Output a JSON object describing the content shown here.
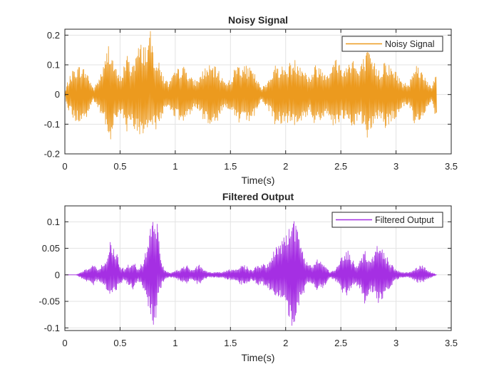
{
  "chart_data": [
    {
      "type": "line",
      "title": "Noisy Signal",
      "xlabel": "Time(s)",
      "ylabel": "",
      "xlim": [
        0,
        3.5
      ],
      "ylim": [
        -0.2,
        0.22
      ],
      "xticks": [
        0,
        0.5,
        1,
        1.5,
        2,
        2.5,
        3,
        3.5
      ],
      "xtick_labels": [
        "0",
        "0.5",
        "1",
        "1.5",
        "2",
        "2.5",
        "3",
        "3.5"
      ],
      "yticks": [
        -0.2,
        -0.1,
        0,
        0.1,
        0.2
      ],
      "ytick_labels": [
        "-0.2",
        "-0.1",
        "0",
        "0.1",
        "0.2"
      ],
      "grid": true,
      "legend_position": "top-right",
      "series": [
        {
          "name": "Noisy Signal",
          "color": "#EC9A1E",
          "x_end": 3.37,
          "envelope": {
            "t": [
              0.0,
              0.02,
              0.08,
              0.14,
              0.2,
              0.26,
              0.3,
              0.36,
              0.4,
              0.42,
              0.44,
              0.46,
              0.5,
              0.52,
              0.56,
              0.6,
              0.66,
              0.7,
              0.74,
              0.78,
              0.8,
              0.82,
              0.86,
              0.9,
              0.94,
              1.0,
              1.06,
              1.1,
              1.16,
              1.2,
              1.26,
              1.32,
              1.38,
              1.44,
              1.5,
              1.56,
              1.62,
              1.68,
              1.72,
              1.78,
              1.84,
              1.9,
              1.96,
              2.0,
              2.04,
              2.08,
              2.14,
              2.18,
              2.22,
              2.26,
              2.3,
              2.36,
              2.42,
              2.46,
              2.5,
              2.54,
              2.6,
              2.66,
              2.7,
              2.74,
              2.8,
              2.86,
              2.9,
              2.94,
              3.0,
              3.06,
              3.12,
              3.16,
              3.2,
              3.26,
              3.32,
              3.36,
              3.37
            ],
            "max": [
              0.0,
              0.04,
              0.09,
              0.1,
              0.08,
              0.02,
              0.05,
              0.11,
              0.19,
              0.15,
              0.12,
              0.09,
              0.06,
              0.08,
              0.14,
              0.1,
              0.16,
              0.18,
              0.17,
              0.22,
              0.16,
              0.14,
              0.1,
              0.06,
              0.04,
              0.08,
              0.1,
              0.09,
              0.05,
              0.05,
              0.09,
              0.1,
              0.09,
              0.05,
              0.05,
              0.11,
              0.1,
              0.09,
              0.07,
              0.02,
              0.05,
              0.1,
              0.1,
              0.09,
              0.11,
              0.12,
              0.11,
              0.08,
              0.06,
              0.1,
              0.1,
              0.08,
              0.1,
              0.13,
              0.1,
              0.09,
              0.14,
              0.08,
              0.12,
              0.15,
              0.11,
              0.08,
              0.13,
              0.1,
              0.08,
              0.04,
              0.04,
              0.11,
              0.1,
              0.07,
              0.02,
              0.08,
              0.08
            ],
            "min": [
              0.0,
              -0.04,
              -0.09,
              -0.1,
              -0.08,
              -0.02,
              -0.05,
              -0.1,
              -0.18,
              -0.14,
              -0.1,
              -0.09,
              -0.06,
              -0.08,
              -0.13,
              -0.09,
              -0.14,
              -0.15,
              -0.13,
              -0.15,
              -0.13,
              -0.12,
              -0.1,
              -0.06,
              -0.04,
              -0.08,
              -0.1,
              -0.09,
              -0.05,
              -0.05,
              -0.09,
              -0.1,
              -0.09,
              -0.05,
              -0.05,
              -0.1,
              -0.1,
              -0.09,
              -0.07,
              -0.02,
              -0.05,
              -0.1,
              -0.1,
              -0.09,
              -0.1,
              -0.11,
              -0.1,
              -0.08,
              -0.06,
              -0.1,
              -0.09,
              -0.08,
              -0.1,
              -0.12,
              -0.09,
              -0.09,
              -0.13,
              -0.08,
              -0.11,
              -0.15,
              -0.1,
              -0.08,
              -0.12,
              -0.1,
              -0.08,
              -0.04,
              -0.04,
              -0.1,
              -0.09,
              -0.07,
              -0.02,
              -0.08,
              -0.08
            ]
          }
        }
      ]
    },
    {
      "type": "line",
      "title": "Filtered Output",
      "xlabel": "Time(s)",
      "ylabel": "",
      "xlim": [
        0,
        3.5
      ],
      "ylim": [
        -0.105,
        0.13
      ],
      "xticks": [
        0,
        0.5,
        1,
        1.5,
        2,
        2.5,
        3,
        3.5
      ],
      "xtick_labels": [
        "0",
        "0.5",
        "1",
        "1.5",
        "2",
        "2.5",
        "3",
        "3.5"
      ],
      "yticks": [
        -0.1,
        -0.05,
        0,
        0.05,
        0.1
      ],
      "ytick_labels": [
        "-0.1",
        "-0.05",
        "0",
        "0.05",
        "0.1"
      ],
      "grid": true,
      "legend_position": "top-right",
      "series": [
        {
          "name": "Filtered Output",
          "color": "#A52FE3",
          "x_end": 3.37,
          "envelope": {
            "t": [
              0.0,
              0.1,
              0.14,
              0.18,
              0.22,
              0.26,
              0.3,
              0.34,
              0.38,
              0.41,
              0.43,
              0.46,
              0.5,
              0.54,
              0.57,
              0.6,
              0.62,
              0.66,
              0.72,
              0.76,
              0.8,
              0.82,
              0.84,
              0.86,
              0.9,
              0.94,
              0.98,
              1.02,
              1.06,
              1.1,
              1.14,
              1.18,
              1.22,
              1.26,
              1.3,
              1.36,
              1.42,
              1.48,
              1.52,
              1.56,
              1.62,
              1.66,
              1.7,
              1.74,
              1.78,
              1.82,
              1.86,
              1.9,
              1.94,
              1.98,
              2.02,
              2.06,
              2.08,
              2.12,
              2.16,
              2.2,
              2.24,
              2.28,
              2.32,
              2.36,
              2.4,
              2.44,
              2.48,
              2.52,
              2.56,
              2.6,
              2.64,
              2.68,
              2.72,
              2.76,
              2.8,
              2.84,
              2.88,
              2.92,
              2.96,
              3.0,
              3.04,
              3.08,
              3.12,
              3.16,
              3.2,
              3.24,
              3.28,
              3.32,
              3.37
            ],
            "max": [
              0.0,
              0.0,
              0.005,
              0.01,
              0.015,
              0.02,
              0.01,
              0.02,
              0.03,
              0.07,
              0.06,
              0.05,
              0.02,
              0.01,
              0.02,
              0.02,
              0.03,
              0.01,
              0.03,
              0.08,
              0.12,
              0.13,
              0.1,
              0.04,
              0.01,
              0.005,
              0.005,
              0.01,
              0.015,
              0.02,
              0.01,
              0.015,
              0.02,
              0.01,
              0.005,
              0.005,
              0.005,
              0.01,
              0.01,
              0.015,
              0.02,
              0.015,
              0.01,
              0.02,
              0.02,
              0.02,
              0.03,
              0.05,
              0.06,
              0.07,
              0.1,
              0.12,
              0.11,
              0.07,
              0.04,
              0.02,
              0.02,
              0.03,
              0.03,
              0.02,
              0.005,
              0.01,
              0.02,
              0.04,
              0.05,
              0.03,
              0.02,
              0.03,
              0.05,
              0.03,
              0.04,
              0.06,
              0.05,
              0.035,
              0.02,
              0.01,
              0.005,
              0.005,
              0.005,
              0.01,
              0.015,
              0.02,
              0.01,
              0.005,
              0.0
            ],
            "min": [
              0.0,
              0.0,
              -0.005,
              -0.01,
              -0.015,
              -0.02,
              -0.01,
              -0.02,
              -0.03,
              -0.05,
              -0.04,
              -0.035,
              -0.02,
              -0.01,
              -0.02,
              -0.02,
              -0.03,
              -0.01,
              -0.03,
              -0.07,
              -0.095,
              -0.09,
              -0.06,
              -0.03,
              -0.01,
              -0.005,
              -0.005,
              -0.01,
              -0.015,
              -0.02,
              -0.01,
              -0.015,
              -0.02,
              -0.01,
              -0.005,
              -0.005,
              -0.005,
              -0.01,
              -0.01,
              -0.015,
              -0.02,
              -0.015,
              -0.01,
              -0.02,
              -0.02,
              -0.02,
              -0.03,
              -0.04,
              -0.05,
              -0.06,
              -0.08,
              -0.1,
              -0.09,
              -0.06,
              -0.04,
              -0.02,
              -0.02,
              -0.03,
              -0.03,
              -0.02,
              -0.005,
              -0.01,
              -0.02,
              -0.035,
              -0.04,
              -0.025,
              -0.02,
              -0.03,
              -0.06,
              -0.03,
              -0.035,
              -0.06,
              -0.045,
              -0.03,
              -0.02,
              -0.01,
              -0.005,
              -0.005,
              -0.005,
              -0.01,
              -0.015,
              -0.015,
              -0.01,
              -0.005,
              0.0
            ]
          }
        }
      ]
    }
  ]
}
